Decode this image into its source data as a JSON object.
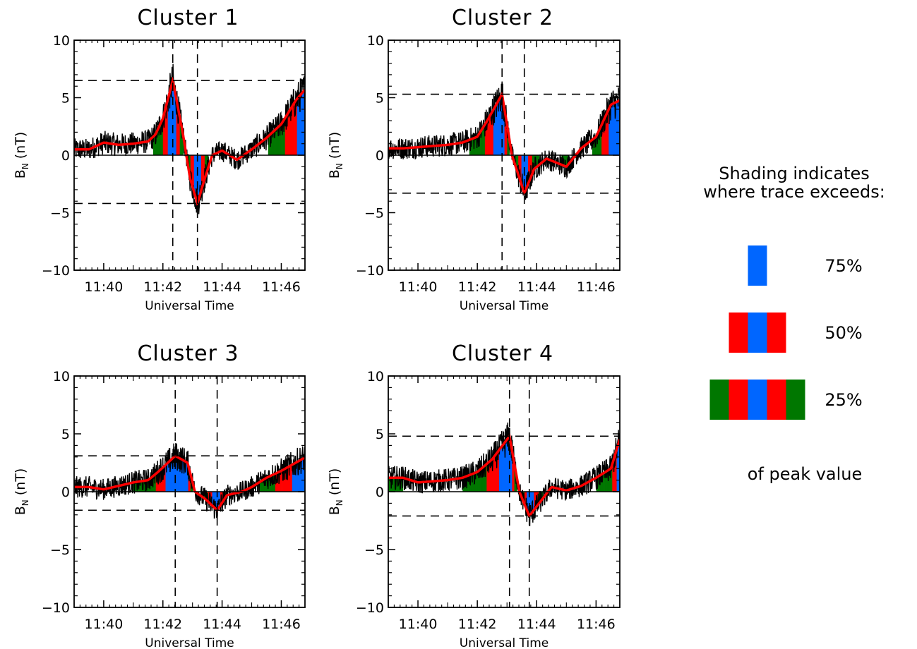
{
  "chart_data": [
    {
      "type": "line",
      "title": "Cluster 1",
      "xlabel": "Universal Time",
      "ylabel": "B",
      "ylabel_sub": "N",
      "ylabel_unit": "(nT)",
      "xlim": [
        11.65,
        11.78
      ],
      "ylim": [
        -10,
        10
      ],
      "x_ticks": [
        "11:40",
        "11:42",
        "11:44",
        "11:46"
      ],
      "y_ticks": [
        -10,
        -5,
        0,
        5,
        10
      ],
      "peak_times": [
        "11:42:20",
        "11:43:10"
      ],
      "peak_values": [
        6.5,
        -4.2
      ],
      "series": [
        {
          "kind": "raw",
          "color": "#000000"
        },
        {
          "kind": "smoothed",
          "color": "#ff0000",
          "x": [
            "11:39:30",
            "11:40:00",
            "11:40:30",
            "11:41:00",
            "11:41:30",
            "11:41:45",
            "11:42:00",
            "11:42:20",
            "11:42:40",
            "11:42:55",
            "11:43:10",
            "11:43:25",
            "11:43:40",
            "11:44:00",
            "11:44:30",
            "11:45:00",
            "11:45:30",
            "11:46:00",
            "11:46:30",
            "11:46:50"
          ],
          "y": [
            0.5,
            1.1,
            0.9,
            1.0,
            1.2,
            1.8,
            3.2,
            6.5,
            2.0,
            -2.0,
            -4.2,
            -2.0,
            0.0,
            0.4,
            -0.4,
            0.5,
            1.5,
            2.7,
            4.8,
            5.8
          ]
        }
      ]
    },
    {
      "type": "line",
      "title": "Cluster 2",
      "xlabel": "Universal Time",
      "ylabel": "B",
      "ylabel_sub": "N",
      "ylabel_unit": "(nT)",
      "xlim": [
        11.65,
        11.78
      ],
      "ylim": [
        -10,
        10
      ],
      "x_ticks": [
        "11:40",
        "11:42",
        "11:44",
        "11:46"
      ],
      "y_ticks": [
        -10,
        -5,
        0,
        5,
        10
      ],
      "peak_times": [
        "11:42:50",
        "11:43:35"
      ],
      "peak_values": [
        5.3,
        -3.3
      ],
      "series": [
        {
          "kind": "raw",
          "color": "#000000"
        },
        {
          "kind": "smoothed",
          "color": "#ff0000",
          "x": [
            "11:39:30",
            "11:40:00",
            "11:41:00",
            "11:41:30",
            "11:42:00",
            "11:42:20",
            "11:42:50",
            "11:43:10",
            "11:43:35",
            "11:43:55",
            "11:44:20",
            "11:45:00",
            "11:45:30",
            "11:46:00",
            "11:46:30",
            "11:46:50"
          ],
          "y": [
            0.6,
            0.7,
            0.9,
            1.1,
            1.6,
            3.0,
            5.3,
            0.0,
            -3.3,
            -1.2,
            -0.3,
            -1.0,
            0.6,
            1.6,
            4.4,
            4.8
          ]
        }
      ]
    },
    {
      "type": "line",
      "title": "Cluster 3",
      "xlabel": "Universal Time",
      "ylabel": "B",
      "ylabel_sub": "N",
      "ylabel_unit": "(nT)",
      "xlim": [
        11.65,
        11.78
      ],
      "ylim": [
        -10,
        10
      ],
      "x_ticks": [
        "11:40",
        "11:42",
        "11:44",
        "11:46"
      ],
      "y_ticks": [
        -10,
        -5,
        0,
        5,
        10
      ],
      "peak_times": [
        "11:42:25",
        "11:43:50"
      ],
      "peak_values": [
        3.1,
        -1.6
      ],
      "series": [
        {
          "kind": "raw",
          "color": "#000000"
        },
        {
          "kind": "smoothed",
          "color": "#ff0000",
          "x": [
            "11:39:30",
            "11:40:00",
            "11:41:00",
            "11:41:30",
            "11:41:50",
            "11:42:25",
            "11:42:50",
            "11:43:05",
            "11:43:25",
            "11:43:50",
            "11:44:10",
            "11:44:40",
            "11:45:00",
            "11:45:30",
            "11:46:00",
            "11:46:50"
          ],
          "y": [
            0.4,
            0.2,
            0.8,
            1.0,
            1.7,
            3.1,
            2.5,
            0.0,
            -0.6,
            -1.6,
            -0.3,
            0.0,
            0.4,
            1.2,
            1.8,
            3.0
          ]
        }
      ]
    },
    {
      "type": "line",
      "title": "Cluster 4",
      "xlabel": "Universal Time",
      "ylabel": "B",
      "ylabel_sub": "N",
      "ylabel_unit": "(nT)",
      "xlim": [
        11.65,
        11.78
      ],
      "ylim": [
        -10,
        10
      ],
      "x_ticks": [
        "11:40",
        "11:42",
        "11:44",
        "11:46"
      ],
      "y_ticks": [
        -10,
        -5,
        0,
        5,
        10
      ],
      "peak_times": [
        "11:43:05",
        "11:43:45"
      ],
      "peak_values": [
        4.8,
        -2.1
      ],
      "series": [
        {
          "kind": "raw",
          "color": "#000000"
        },
        {
          "kind": "smoothed",
          "color": "#ff0000",
          "x": [
            "11:39:30",
            "11:40:00",
            "11:41:00",
            "11:41:30",
            "11:42:00",
            "11:42:30",
            "11:43:05",
            "11:43:25",
            "11:43:45",
            "11:44:05",
            "11:44:30",
            "11:45:00",
            "11:45:30",
            "11:46:00",
            "11:46:30",
            "11:46:50"
          ],
          "y": [
            1.2,
            0.8,
            1.0,
            1.2,
            1.7,
            2.8,
            4.8,
            0.0,
            -2.1,
            -1.0,
            0.4,
            0.1,
            0.5,
            1.2,
            2.0,
            4.8
          ]
        }
      ]
    }
  ],
  "legend": {
    "heading_line1": "Shading indicates",
    "heading_line2": "where trace exceeds:",
    "items": [
      {
        "label": "75%",
        "colors": [
          "#0066ff"
        ]
      },
      {
        "label": "50%",
        "colors": [
          "#ff0000",
          "#0066ff",
          "#ff0000"
        ]
      },
      {
        "label": "25%",
        "colors": [
          "#007700",
          "#ff0000",
          "#0066ff",
          "#ff0000",
          "#007700"
        ]
      }
    ],
    "footer": "of peak value",
    "shading_colors": {
      "above_75": "#0066ff",
      "above_50": "#ff0000",
      "above_25": "#007700"
    }
  }
}
